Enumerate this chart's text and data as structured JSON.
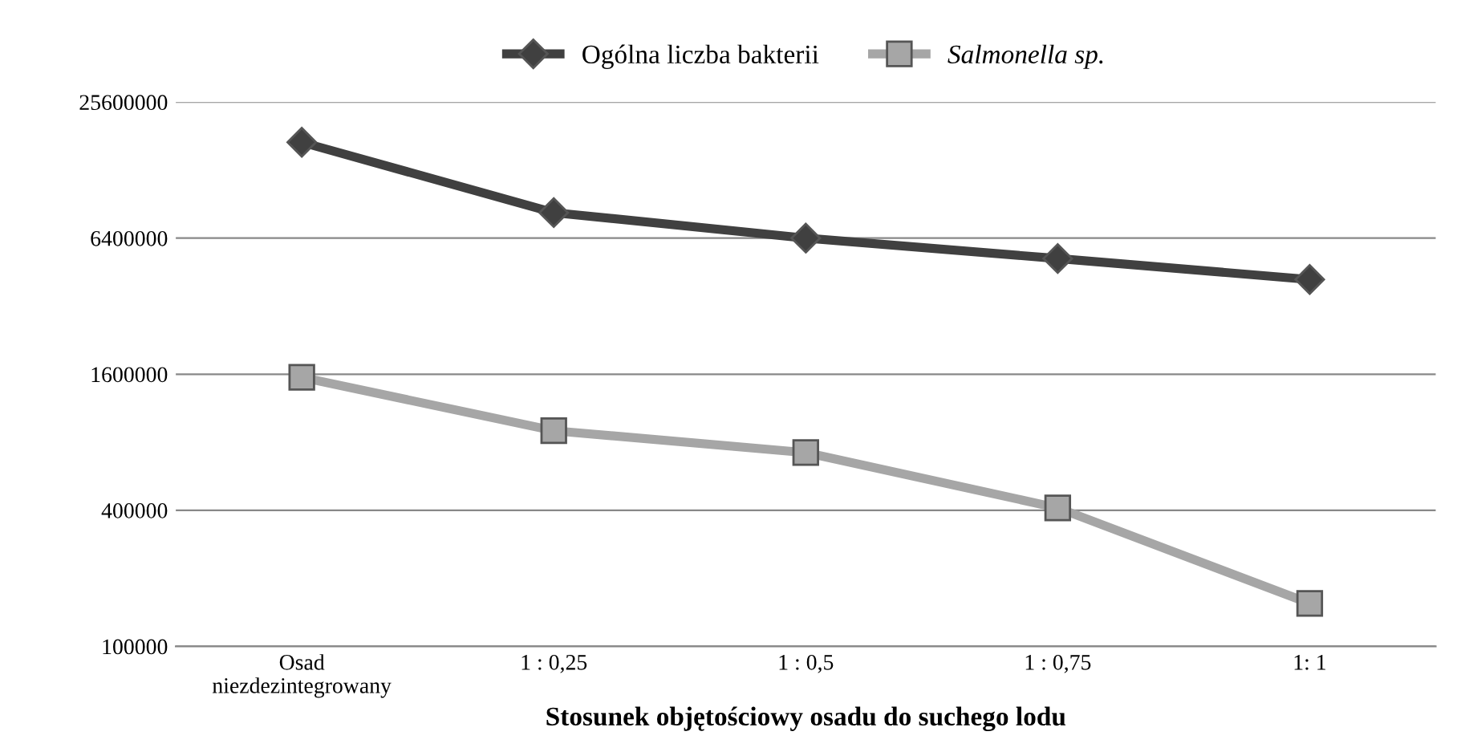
{
  "chart_data": {
    "type": "line",
    "xlabel": "Stosunek objętościowy osadu do suchego lodu",
    "categories": [
      "Osad\nniezdezintegrowany",
      "1 : 0,25",
      "1 : 0,5",
      "1 : 0,75",
      "1: 1"
    ],
    "series": [
      {
        "name": "Ogólna liczba bakterii",
        "color": "#404040",
        "marker": "diamond",
        "values": [
          17000000,
          8300000,
          6400000,
          5200000,
          4200000
        ]
      },
      {
        "name": "Salmonella sp.",
        "color": "#a6a6a6",
        "marker": "square",
        "values": [
          1550000,
          900000,
          720000,
          410000,
          155000
        ]
      }
    ],
    "log": "y",
    "ylim": [
      100000,
      25600000
    ],
    "yticks": [
      100000,
      400000,
      1600000,
      6400000,
      25600000
    ],
    "grid": "y",
    "legend": "top",
    "line_style": "solid"
  }
}
